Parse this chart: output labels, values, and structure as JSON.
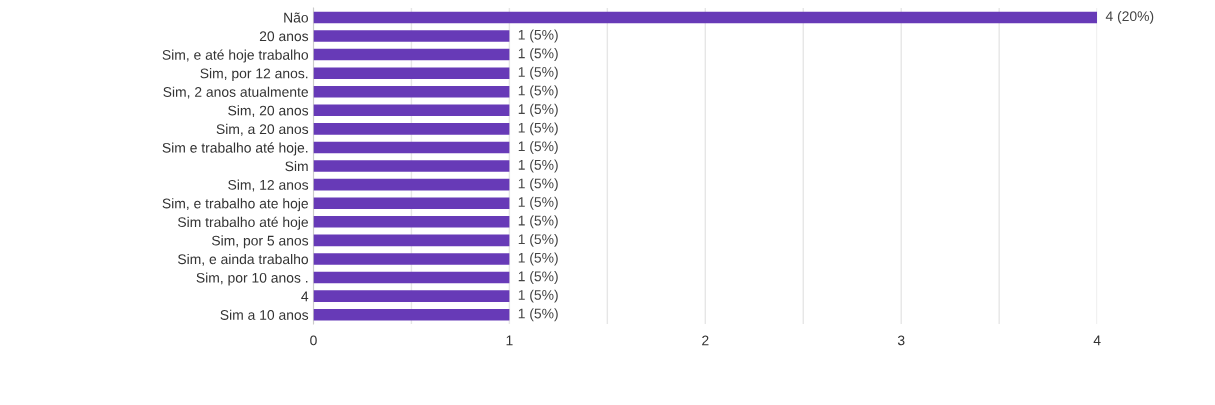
{
  "chart_data": {
    "type": "bar",
    "orientation": "horizontal",
    "categories": [
      "Não",
      "20 anos",
      "Sim, e até hoje trabalho",
      "Sim, por 12 anos.",
      "Sim, 2 anos atualmente",
      "Sim, 20 anos",
      "Sim, a 20 anos",
      "Sim e trabalho até hoje.",
      "Sim",
      "Sim, 12 anos",
      "Sim, e trabalho ate hoje",
      "Sim trabalho até hoje",
      "Sim, por 5 anos",
      "Sim, e ainda trabalho",
      "Sim, por 10 anos .",
      "4",
      "Sim a 10 anos"
    ],
    "values": [
      4,
      1,
      1,
      1,
      1,
      1,
      1,
      1,
      1,
      1,
      1,
      1,
      1,
      1,
      1,
      1,
      1
    ],
    "value_labels": [
      "4 (20%)",
      "1 (5%)",
      "1 (5%)",
      "1 (5%)",
      "1 (5%)",
      "1 (5%)",
      "1 (5%)",
      "1 (5%)",
      "1 (5%)",
      "1 (5%)",
      "1 (5%)",
      "1 (5%)",
      "1 (5%)",
      "1 (5%)",
      "1 (5%)",
      "1 (5%)",
      "1 (5%)"
    ],
    "color": "#673ab7",
    "xlim": [
      0,
      4
    ],
    "xticks": [
      0,
      {
        "value": 0.5,
        "label": null
      },
      1,
      {
        "value": 1.5,
        "label": null
      },
      2,
      {
        "value": 2.5,
        "label": null
      },
      3,
      {
        "value": 3.5,
        "label": null
      },
      4
    ],
    "grid": "x"
  }
}
